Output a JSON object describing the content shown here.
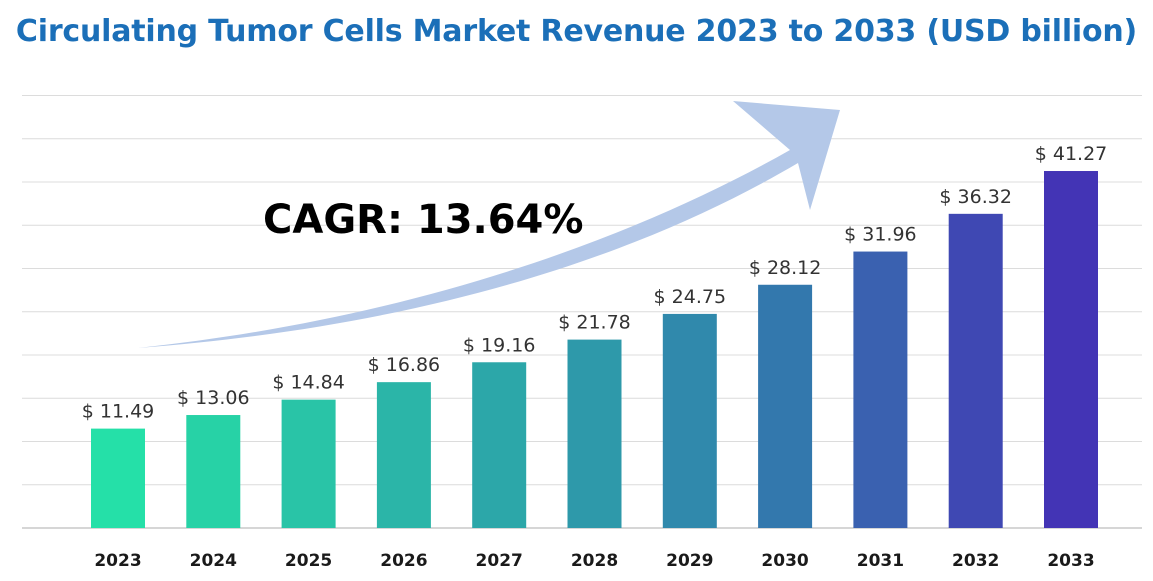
{
  "title": "Circulating Tumor Cells Market Revenue 2023 to 2033 (USD billion)",
  "annotation": "CAGR: 13.64%",
  "chart_data": {
    "type": "bar",
    "title": "Circulating Tumor Cells Market Revenue 2023 to 2033 (USD billion)",
    "xlabel": "",
    "ylabel": "",
    "categories": [
      "2023",
      "2024",
      "2025",
      "2026",
      "2027",
      "2028",
      "2029",
      "2030",
      "2031",
      "2032",
      "2033"
    ],
    "values": [
      11.49,
      13.06,
      14.84,
      16.86,
      19.16,
      21.78,
      24.75,
      28.12,
      31.96,
      36.32,
      41.27
    ],
    "value_labels": [
      "$ 11.49",
      "$ 13.06",
      "$ 14.84",
      "$ 16.86",
      "$ 19.16",
      "$ 21.78",
      "$ 24.75",
      "$ 28.12",
      "$ 31.96",
      "$ 36.32",
      "$ 41.27"
    ],
    "ylim": [
      0,
      50
    ],
    "grid": true,
    "annotations": [
      "CAGR: 13.64%"
    ],
    "colors": [
      "#25e0a8",
      "#27d2a6",
      "#29c4a7",
      "#2bb5a8",
      "#2ca7a9",
      "#2e99aa",
      "#3089ac",
      "#3378ad",
      "#3a61b0",
      "#3f48b3",
      "#4334b5"
    ],
    "arrow_color": "#b4c8e8"
  }
}
